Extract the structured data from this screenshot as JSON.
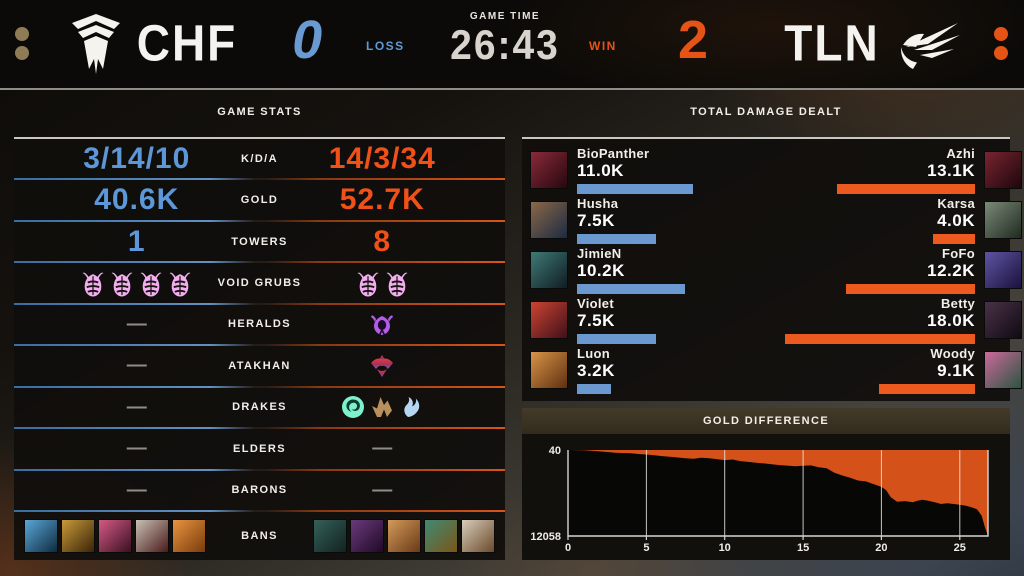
{
  "ui": {
    "dash": "—"
  },
  "scoreboard": {
    "left_dots_color": "#8d7c55",
    "right_dots_color": "#e65317",
    "left_team": {
      "abbr": "CHF",
      "score": "0",
      "result": "LOSS",
      "color": "#6a9ad2"
    },
    "right_team": {
      "abbr": "TLN",
      "score": "2",
      "result": "WIN",
      "color": "#e65317"
    },
    "game_time_label": "GAME TIME",
    "game_time": "26:43"
  },
  "game_stats": {
    "title": "GAME STATS",
    "rows": [
      {
        "label": "K/D/A",
        "left": {
          "type": "text",
          "value": "3/14/10"
        },
        "right": {
          "type": "text",
          "value": "14/3/34"
        }
      },
      {
        "label": "GOLD",
        "left": {
          "type": "text",
          "value": "40.6K"
        },
        "right": {
          "type": "text",
          "value": "52.7K"
        }
      },
      {
        "label": "TOWERS",
        "left": {
          "type": "text",
          "value": "1"
        },
        "right": {
          "type": "text",
          "value": "8"
        }
      },
      {
        "label": "VOID GRUBS",
        "left": {
          "type": "icons",
          "icons": [
            "void-grub",
            "void-grub",
            "void-grub",
            "void-grub"
          ]
        },
        "right": {
          "type": "icons",
          "icons": [
            "void-grub",
            "void-grub"
          ]
        }
      },
      {
        "label": "HERALDS",
        "left": {
          "type": "dash"
        },
        "right": {
          "type": "icons",
          "icons": [
            "herald"
          ]
        }
      },
      {
        "label": "ATAKHAN",
        "left": {
          "type": "dash"
        },
        "right": {
          "type": "icons",
          "icons": [
            "atakhan"
          ]
        }
      },
      {
        "label": "DRAKES",
        "left": {
          "type": "dash"
        },
        "right": {
          "type": "icons",
          "icons": [
            "ocean-drake",
            "mountain-drake",
            "hextech-drake"
          ]
        }
      },
      {
        "label": "ELDERS",
        "left": {
          "type": "dash"
        },
        "right": {
          "type": "dash"
        }
      },
      {
        "label": "BARONS",
        "left": {
          "type": "dash"
        },
        "right": {
          "type": "dash"
        }
      },
      {
        "label": "BANS",
        "left": {
          "type": "portraits",
          "portraits": [
            [
              "#5aa8d8",
              "#0f2a40"
            ],
            [
              "#c89a3a",
              "#3a2408"
            ],
            [
              "#d45a86",
              "#3a1020"
            ],
            [
              "#c8c0b4",
              "#4a1a1a"
            ],
            [
              "#e89440",
              "#7a3c0c"
            ]
          ]
        },
        "right": {
          "type": "portraits",
          "portraits": [
            [
              "#35605a",
              "#122320"
            ],
            [
              "#6a3a7a",
              "#200a28"
            ],
            [
              "#d49a5a",
              "#6a3a18"
            ],
            [
              "#3f8a72",
              "#7a5518"
            ],
            [
              "#d8cdbb",
              "#6a4a2a"
            ]
          ]
        }
      }
    ]
  },
  "damage": {
    "title": "TOTAL DAMAGE DEALT",
    "max": 18.0,
    "left_bar_color": "#6b98cf",
    "right_bar_color": "#ed5a1f",
    "rows": [
      {
        "left": {
          "name": "BioPanther",
          "value": "11.0K",
          "num": 11.0,
          "portrait": [
            "#8a2a3a",
            "#26080e"
          ]
        },
        "right": {
          "name": "Azhi",
          "value": "13.1K",
          "num": 13.1,
          "portrait": [
            "#7a2430",
            "#1c070c"
          ]
        }
      },
      {
        "left": {
          "name": "Husha",
          "value": "7.5K",
          "num": 7.5,
          "portrait": [
            "#8a6848",
            "#1c2a42"
          ]
        },
        "right": {
          "name": "Karsa",
          "value": "4.0K",
          "num": 4.0,
          "portrait": [
            "#7a8a78",
            "#202a20"
          ]
        }
      },
      {
        "left": {
          "name": "JimieN",
          "value": "10.2K",
          "num": 10.2,
          "portrait": [
            "#3f7a74",
            "#101c24"
          ]
        },
        "right": {
          "name": "FoFo",
          "value": "12.2K",
          "num": 12.2,
          "portrait": [
            "#5f54a4",
            "#1a123c"
          ]
        }
      },
      {
        "left": {
          "name": "Violet",
          "value": "7.5K",
          "num": 7.5,
          "portrait": [
            "#cc4432",
            "#40101a"
          ]
        },
        "right": {
          "name": "Betty",
          "value": "18.0K",
          "num": 18.0,
          "portrait": [
            "#4a3248",
            "#100a12"
          ]
        }
      },
      {
        "left": {
          "name": "Luon",
          "value": "3.2K",
          "num": 3.2,
          "portrait": [
            "#d89448",
            "#5f3010"
          ]
        },
        "right": {
          "name": "Woody",
          "value": "9.1K",
          "num": 9.1,
          "portrait": [
            "#cc6a9a",
            "#2a5540"
          ]
        }
      }
    ]
  },
  "chart_data": {
    "type": "area",
    "title": "GOLD DIFFERENCE",
    "y_top_label": "40",
    "y_bottom_label": "12058",
    "y_max": 40,
    "y_min": -12058,
    "x_max": 26.8,
    "x_ticks": [
      0,
      5,
      10,
      15,
      20,
      25
    ],
    "area_color": "#d4511a",
    "grid": true,
    "points": [
      [
        0,
        40
      ],
      [
        0.5,
        30
      ],
      [
        1,
        0
      ],
      [
        1.5,
        -60
      ],
      [
        2,
        -160
      ],
      [
        2.5,
        -240
      ],
      [
        3,
        -340
      ],
      [
        3.5,
        -380
      ],
      [
        4,
        -430
      ],
      [
        4.5,
        -520
      ],
      [
        5,
        -600
      ],
      [
        5.5,
        -700
      ],
      [
        6,
        -820
      ],
      [
        6.5,
        -900
      ],
      [
        7,
        -1020
      ],
      [
        7.5,
        -1120
      ],
      [
        8,
        -1180
      ],
      [
        8.5,
        -1060
      ],
      [
        9,
        -1120
      ],
      [
        9.5,
        -1240
      ],
      [
        10,
        -1380
      ],
      [
        10.5,
        -1300
      ],
      [
        11,
        -1520
      ],
      [
        11.5,
        -1640
      ],
      [
        12,
        -1760
      ],
      [
        12.5,
        -1840
      ],
      [
        13,
        -1960
      ],
      [
        13.5,
        -2080
      ],
      [
        14,
        -2160
      ],
      [
        14.5,
        -2240
      ],
      [
        15,
        -2180
      ],
      [
        15.5,
        -2120
      ],
      [
        16,
        -2380
      ],
      [
        16.5,
        -2520
      ],
      [
        17,
        -3150
      ],
      [
        17.5,
        -3550
      ],
      [
        18,
        -3850
      ],
      [
        18.5,
        -4250
      ],
      [
        19,
        -4380
      ],
      [
        19.5,
        -4750
      ],
      [
        20,
        -5150
      ],
      [
        20.3,
        -5600
      ],
      [
        20.6,
        -6600
      ],
      [
        21,
        -7250
      ],
      [
        21.5,
        -7150
      ],
      [
        22,
        -7300
      ],
      [
        22.3,
        -7100
      ],
      [
        22.6,
        -6950
      ],
      [
        23,
        -7100
      ],
      [
        23.4,
        -7300
      ],
      [
        23.8,
        -7550
      ],
      [
        24.2,
        -7450
      ],
      [
        24.6,
        -7550
      ],
      [
        25,
        -7650
      ],
      [
        25.4,
        -7800
      ],
      [
        25.8,
        -8050
      ],
      [
        26.1,
        -8300
      ],
      [
        26.4,
        -9200
      ],
      [
        26.6,
        -10800
      ],
      [
        26.8,
        -12058
      ]
    ]
  }
}
